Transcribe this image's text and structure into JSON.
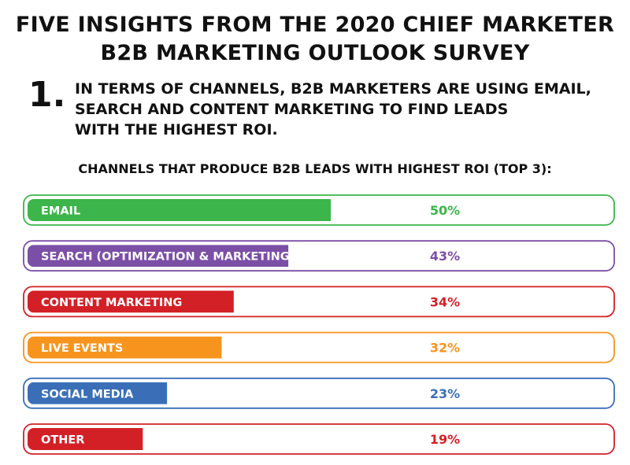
{
  "header": {
    "title_line1": "FIVE INSIGHTS FROM THE 2020 CHIEF MARKETER",
    "title_line2": "B2B MARKETING OUTLOOK SURVEY",
    "insight_number": "1.",
    "insight_line1": "IN TERMS OF CHANNELS, B2B MARKETERS ARE USING EMAIL,",
    "insight_line2": "SEARCH AND CONTENT MARKETING TO FIND LEADS",
    "insight_line3": "WITH THE HIGHEST ROI."
  },
  "chart_data": {
    "type": "bar",
    "title": "CHANNELS THAT PRODUCE B2B LEADS WITH HIGHEST ROI (TOP 3):",
    "categories": [
      "EMAIL",
      "SEARCH (OPTIMIZATION & MARKETING)",
      "CONTENT MARKETING",
      "LIVE EVENTS",
      "SOCIAL MEDIA",
      "OTHER"
    ],
    "values": [
      50,
      43,
      34,
      32,
      23,
      19
    ],
    "value_labels": [
      "50%",
      "43%",
      "34%",
      "32%",
      "23%",
      "19%"
    ],
    "colors": [
      "#3cb54a",
      "#7b4fa6",
      "#d32027",
      "#f7941d",
      "#3a6fb7",
      "#d32027"
    ],
    "xlim": [
      0,
      100
    ],
    "orientation": "horizontal"
  }
}
